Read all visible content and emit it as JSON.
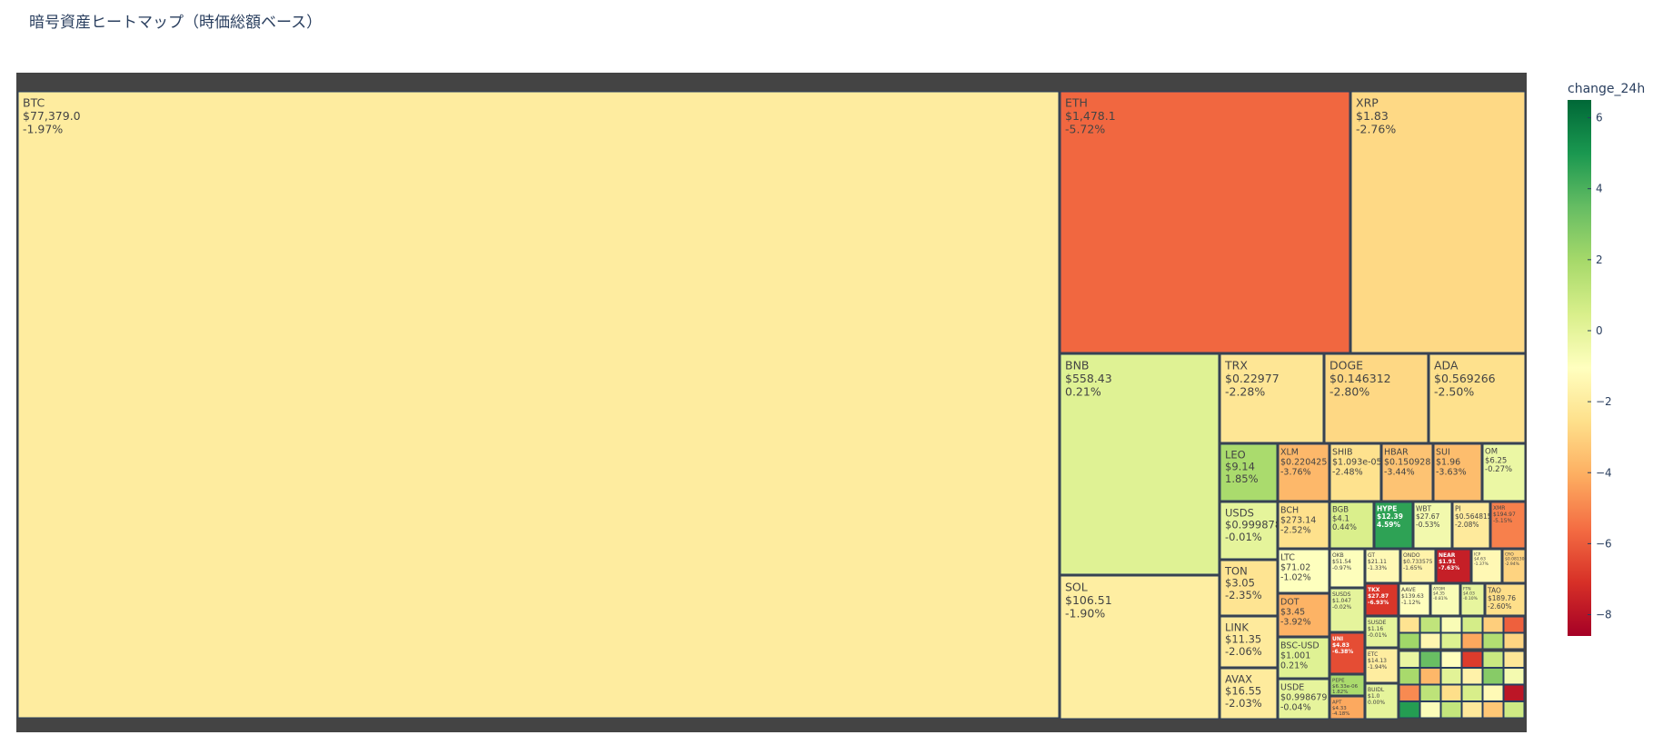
{
  "title": "暗号資産ヒートマップ（時価総額ベース）",
  "chart_data": {
    "type": "treemap",
    "title": "暗号資産ヒートマップ（時価総額ベース）",
    "color_metric": "change_24h",
    "colorbar": {
      "title": "change_24h",
      "range": [
        -8.6,
        6.5
      ],
      "ticks": [
        6,
        4,
        2,
        0,
        -2,
        -4,
        -6,
        -8
      ],
      "tick_labels": [
        "6",
        "4",
        "2",
        "0",
        "−2",
        "−4",
        "−6",
        "−8"
      ],
      "colorscale": [
        "#a50026",
        "#d73027",
        "#f46d43",
        "#fdae61",
        "#fee08b",
        "#ffffbf",
        "#d9ef8b",
        "#a6d96a",
        "#66bd63",
        "#1a9850",
        "#006837"
      ]
    },
    "tiles": [
      {
        "symbol": "BTC",
        "price": "$77,379.0",
        "change": "-1.97%",
        "change_24h": -1.97
      },
      {
        "symbol": "ETH",
        "price": "$1,478.1",
        "change": "-5.72%",
        "change_24h": -5.72
      },
      {
        "symbol": "XRP",
        "price": "$1.83",
        "change": "-2.76%",
        "change_24h": -2.76
      },
      {
        "symbol": "BNB",
        "price": "$558.43",
        "change": "0.21%",
        "change_24h": 0.21
      },
      {
        "symbol": "SOL",
        "price": "$106.51",
        "change": "-1.90%",
        "change_24h": -1.9
      },
      {
        "symbol": "TRX",
        "price": "$0.22977",
        "change": "-2.28%",
        "change_24h": -2.28
      },
      {
        "symbol": "DOGE",
        "price": "$0.146312",
        "change": "-2.80%",
        "change_24h": -2.8
      },
      {
        "symbol": "ADA",
        "price": "$0.569266",
        "change": "-2.50%",
        "change_24h": -2.5
      },
      {
        "symbol": "LEO",
        "price": "$9.14",
        "change": "1.85%",
        "change_24h": 1.85
      },
      {
        "symbol": "XLM",
        "price": "$0.220425",
        "change": "-3.76%",
        "change_24h": -3.76
      },
      {
        "symbol": "SHIB",
        "price": "$1.093e-05",
        "change": "-2.48%",
        "change_24h": -2.48
      },
      {
        "symbol": "HBAR",
        "price": "$0.150928",
        "change": "-3.44%",
        "change_24h": -3.44
      },
      {
        "symbol": "SUI",
        "price": "$1.96",
        "change": "-3.63%",
        "change_24h": -3.63
      },
      {
        "symbol": "OM",
        "price": "$6.25",
        "change": "-0.27%",
        "change_24h": -0.27
      },
      {
        "symbol": "USDS",
        "price": "$0.999878",
        "change": "-0.01%",
        "change_24h": -0.01
      },
      {
        "symbol": "BCH",
        "price": "$273.14",
        "change": "-2.52%",
        "change_24h": -2.52
      },
      {
        "symbol": "BGB",
        "price": "$4.1",
        "change": "0.44%",
        "change_24h": 0.44
      },
      {
        "symbol": "HYPE",
        "price": "$12.39",
        "change": "4.59%",
        "change_24h": 4.59
      },
      {
        "symbol": "WBT",
        "price": "$27.67",
        "change": "-0.53%",
        "change_24h": -0.53
      },
      {
        "symbol": "PI",
        "price": "$0.564815",
        "change": "-2.08%",
        "change_24h": -2.08
      },
      {
        "symbol": "XMR",
        "price": "$194.97",
        "change": "-5.15%",
        "change_24h": -5.15
      },
      {
        "symbol": "TON",
        "price": "$3.05",
        "change": "-2.35%",
        "change_24h": -2.35
      },
      {
        "symbol": "LTC",
        "price": "$71.02",
        "change": "-1.02%",
        "change_24h": -1.02
      },
      {
        "symbol": "OKB",
        "price": "$51.54",
        "change": "-0.97%",
        "change_24h": -0.97
      },
      {
        "symbol": "GT",
        "price": "$21.11",
        "change": "-1.33%",
        "change_24h": -1.33
      },
      {
        "symbol": "ONDO",
        "price": "$0.733575",
        "change": "-1.65%",
        "change_24h": -1.65
      },
      {
        "symbol": "NEAR",
        "price": "$1.91",
        "change": "-7.63%",
        "change_24h": -7.63
      },
      {
        "symbol": "ICP",
        "price": "$4.63",
        "change": "-1.37%",
        "change_24h": -1.37
      },
      {
        "symbol": "CRO",
        "price": "$0.081303",
        "change": "-2.94%",
        "change_24h": -2.94
      },
      {
        "symbol": "DOT",
        "price": "$3.45",
        "change": "-3.92%",
        "change_24h": -3.92
      },
      {
        "symbol": "SUSDS",
        "price": "$1.047",
        "change": "-0.02%",
        "change_24h": -0.02
      },
      {
        "symbol": "TKX",
        "price": "$27.87",
        "change": "-6.93%",
        "change_24h": -6.93
      },
      {
        "symbol": "AAVE",
        "price": "$139.63",
        "change": "-1.12%",
        "change_24h": -1.12
      },
      {
        "symbol": "ATOM",
        "price": "$4.35",
        "change": "-0.81%",
        "change_24h": -0.81
      },
      {
        "symbol": "LINK",
        "price": "$11.35",
        "change": "-2.06%",
        "change_24h": -2.06
      },
      {
        "symbol": "BSC-USD",
        "price": "$1.001",
        "change": "0.21%",
        "change_24h": 0.21
      },
      {
        "symbol": "UNI",
        "price": "$4.83",
        "change": "-6.38%",
        "change_24h": -6.38
      },
      {
        "symbol": "SUSDE",
        "price": "$1.16",
        "change": "-0.01%",
        "change_24h": -0.01
      },
      {
        "symbol": "PEPE",
        "price": "$6.33e-06",
        "change": "1.82%",
        "change_24h": 1.82
      },
      {
        "symbol": "ETC",
        "price": "$14.13",
        "change": "-1.94%",
        "change_24h": -1.94
      },
      {
        "symbol": "AVAX",
        "price": "$16.55",
        "change": "-2.03%",
        "change_24h": -2.03
      },
      {
        "symbol": "USDE",
        "price": "$0.998679",
        "change": "-0.04%",
        "change_24h": -0.04
      },
      {
        "symbol": "APT",
        "price": "$4.33",
        "change": "-4.18%",
        "change_24h": -4.18
      },
      {
        "symbol": "BUIDL",
        "price": "$1.0",
        "change": "0.00%",
        "change_24h": 0.0
      },
      {
        "symbol": "FTN",
        "price": "$4.03",
        "change": "-0.10%",
        "change_24h": -0.1
      },
      {
        "symbol": "TAO",
        "price": "$189.76",
        "change": "-2.60%",
        "change_24h": -2.6
      }
    ]
  }
}
